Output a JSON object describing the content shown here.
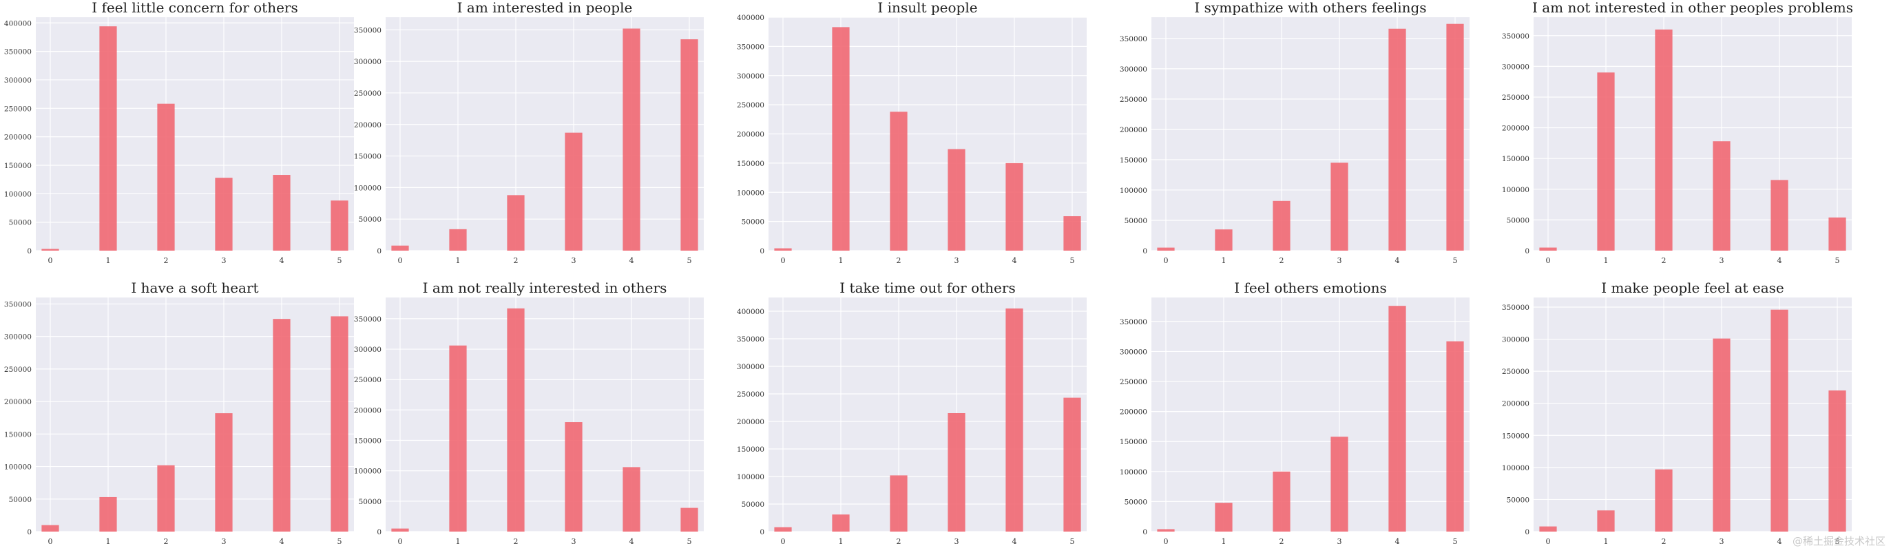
{
  "figure": {
    "watermark": "@稀土掘金技术社区",
    "colors": {
      "bar": "#f0646e",
      "plot_bg": "#eaeaf2",
      "grid": "#ffffff",
      "text": "#333333"
    }
  },
  "chart_data": [
    {
      "type": "bar",
      "title": "I feel little concern for others",
      "categories": [
        0,
        1,
        2,
        3,
        4,
        5
      ],
      "values": [
        3000,
        394000,
        258000,
        128000,
        133000,
        88000
      ],
      "ylim": [
        0,
        410000
      ],
      "yticks": [
        0,
        50000,
        100000,
        150000,
        200000,
        250000,
        300000,
        350000,
        400000
      ],
      "grid": true
    },
    {
      "type": "bar",
      "title": "I am interested in people",
      "categories": [
        0,
        1,
        2,
        3,
        4,
        5
      ],
      "values": [
        8000,
        34000,
        88000,
        187000,
        352000,
        335000
      ],
      "ylim": [
        0,
        370000
      ],
      "yticks": [
        0,
        50000,
        100000,
        150000,
        200000,
        250000,
        300000,
        350000
      ],
      "grid": true
    },
    {
      "type": "bar",
      "title": "I insult people",
      "categories": [
        0,
        1,
        2,
        3,
        4,
        5
      ],
      "values": [
        4000,
        383000,
        238000,
        174000,
        150000,
        59000
      ],
      "ylim": [
        0,
        400000
      ],
      "yticks": [
        0,
        50000,
        100000,
        150000,
        200000,
        250000,
        300000,
        350000,
        400000
      ],
      "grid": true
    },
    {
      "type": "bar",
      "title": "I sympathize with others feelings",
      "categories": [
        0,
        1,
        2,
        3,
        4,
        5
      ],
      "values": [
        5000,
        35000,
        82000,
        145000,
        366000,
        374000
      ],
      "ylim": [
        0,
        385000
      ],
      "yticks": [
        0,
        50000,
        100000,
        150000,
        200000,
        250000,
        300000,
        350000
      ],
      "grid": true
    },
    {
      "type": "bar",
      "title": "I am not interested in other peoples problems",
      "categories": [
        0,
        1,
        2,
        3,
        4,
        5
      ],
      "values": [
        5000,
        290000,
        360000,
        178000,
        115000,
        54000
      ],
      "ylim": [
        0,
        380000
      ],
      "yticks": [
        0,
        50000,
        100000,
        150000,
        200000,
        250000,
        300000,
        350000
      ],
      "grid": true
    },
    {
      "type": "bar",
      "title": "I have a soft heart",
      "categories": [
        0,
        1,
        2,
        3,
        4,
        5
      ],
      "values": [
        10000,
        53000,
        102000,
        182000,
        327000,
        331000
      ],
      "ylim": [
        0,
        360000
      ],
      "yticks": [
        0,
        50000,
        100000,
        150000,
        200000,
        250000,
        300000,
        350000
      ],
      "grid": true
    },
    {
      "type": "bar",
      "title": "I am not really interested in others",
      "categories": [
        0,
        1,
        2,
        3,
        4,
        5
      ],
      "values": [
        5000,
        306000,
        367000,
        180000,
        106000,
        39000
      ],
      "ylim": [
        0,
        385000
      ],
      "yticks": [
        0,
        50000,
        100000,
        150000,
        200000,
        250000,
        300000,
        350000
      ],
      "grid": true
    },
    {
      "type": "bar",
      "title": "I take time out for others",
      "categories": [
        0,
        1,
        2,
        3,
        4,
        5
      ],
      "values": [
        8000,
        31000,
        102000,
        215000,
        405000,
        243000
      ],
      "ylim": [
        0,
        425000
      ],
      "yticks": [
        0,
        50000,
        100000,
        150000,
        200000,
        250000,
        300000,
        350000,
        400000
      ],
      "grid": true
    },
    {
      "type": "bar",
      "title": "I feel others emotions",
      "categories": [
        0,
        1,
        2,
        3,
        4,
        5
      ],
      "values": [
        4000,
        48000,
        100000,
        158000,
        376000,
        317000
      ],
      "ylim": [
        0,
        390000
      ],
      "yticks": [
        0,
        50000,
        100000,
        150000,
        200000,
        250000,
        300000,
        350000
      ],
      "grid": true
    },
    {
      "type": "bar",
      "title": "I make people feel at ease",
      "categories": [
        0,
        1,
        2,
        3,
        4,
        5
      ],
      "values": [
        8000,
        33000,
        97000,
        301000,
        346000,
        220000
      ],
      "ylim": [
        0,
        365000
      ],
      "yticks": [
        0,
        50000,
        100000,
        150000,
        200000,
        250000,
        300000,
        350000
      ],
      "grid": true
    }
  ]
}
